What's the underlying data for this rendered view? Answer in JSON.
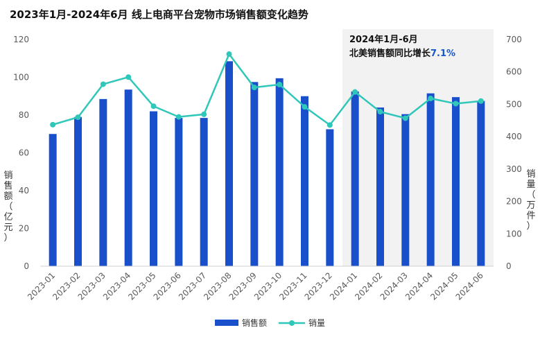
{
  "chart_data": {
    "type": "bar+line",
    "title": "2023年1月-2024年6月 线上电商平台宠物市场销售额变化趋势",
    "categories": [
      "2023-01",
      "2023-02",
      "2023-03",
      "2023-04",
      "2023-05",
      "2023-06",
      "2023-07",
      "2023-08",
      "2023-09",
      "2023-10",
      "2023-11",
      "2023-12",
      "2024-01",
      "2024-02",
      "2024-03",
      "2024-04",
      "2024-05",
      "2024-06"
    ],
    "series": [
      {
        "name": "销售额",
        "type": "bar",
        "axis": "left",
        "values": [
          70,
          79,
          88.5,
          93.5,
          82,
          78.5,
          78.5,
          108.5,
          97.5,
          99.5,
          90,
          72.5,
          92.5,
          84,
          80.5,
          91.5,
          89.5,
          87.5
        ]
      },
      {
        "name": "销量",
        "type": "line",
        "axis": "right",
        "values": [
          437,
          460,
          562,
          584,
          494,
          461,
          469,
          655,
          552,
          561,
          492,
          436,
          538,
          477,
          457,
          518,
          502,
          510
        ]
      }
    ],
    "ylabel_left": "销售额（亿元）",
    "ylabel_right": "销量（万件）",
    "ylim_left": [
      0,
      120
    ],
    "ylim_right": [
      0,
      700
    ],
    "yticks_left": [
      0,
      20,
      40,
      60,
      80,
      100,
      120
    ],
    "yticks_right": [
      0,
      100,
      200,
      300,
      400,
      500,
      600,
      700
    ],
    "legend_position": "bottom",
    "highlight": {
      "from": "2024-01",
      "to": "2024-06",
      "line1": "2024年1月-6月",
      "line2_prefix": "北美销售额同比增长",
      "line2_value": "7.1%"
    },
    "colors": {
      "bar": "#1a4fcb",
      "line": "#2ec7b9",
      "highlight_bg": "#f2f2f2",
      "accent_text": "#1a56c9"
    }
  }
}
